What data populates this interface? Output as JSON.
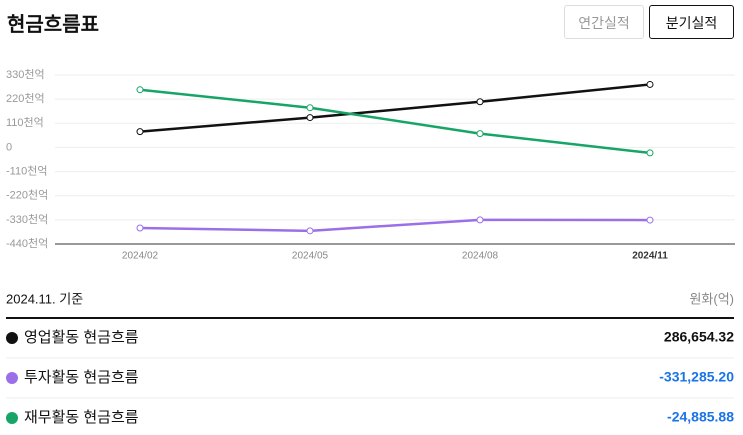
{
  "header": {
    "title": "현금흐름표",
    "tabs": [
      "연간실적",
      "분기실적"
    ]
  },
  "chart_data": {
    "type": "line",
    "categories": [
      "2024/02",
      "2024/05",
      "2024/08",
      "2024/11"
    ],
    "series": [
      {
        "name": "영업활동 현금흐름",
        "color": "#111111",
        "values": [
          72,
          136,
          208,
          287
        ]
      },
      {
        "name": "투자활동 현금흐름",
        "color": "#9b6fe8",
        "values": [
          -367,
          -380,
          -330,
          -331
        ]
      },
      {
        "name": "재무활동 현금흐름",
        "color": "#16a566",
        "values": [
          263,
          181,
          63,
          -25
        ]
      }
    ],
    "ylim": [
      -440,
      330
    ],
    "yticks": [
      {
        "value": 330,
        "label": "330천억"
      },
      {
        "value": 220,
        "label": "220천억"
      },
      {
        "value": 110,
        "label": "110천억"
      },
      0,
      {
        "value": -110,
        "label": "-110천억"
      },
      {
        "value": -220,
        "label": "-220천억"
      },
      {
        "value": -330,
        "label": "-330천억"
      },
      {
        "value": -440,
        "label": "-440천억"
      }
    ],
    "grid": true
  },
  "table": {
    "date": "2024.11. 기준",
    "unit": "원화(억)",
    "values": [
      "286,654.32",
      "-331,285.20",
      "-24,885.88"
    ]
  }
}
